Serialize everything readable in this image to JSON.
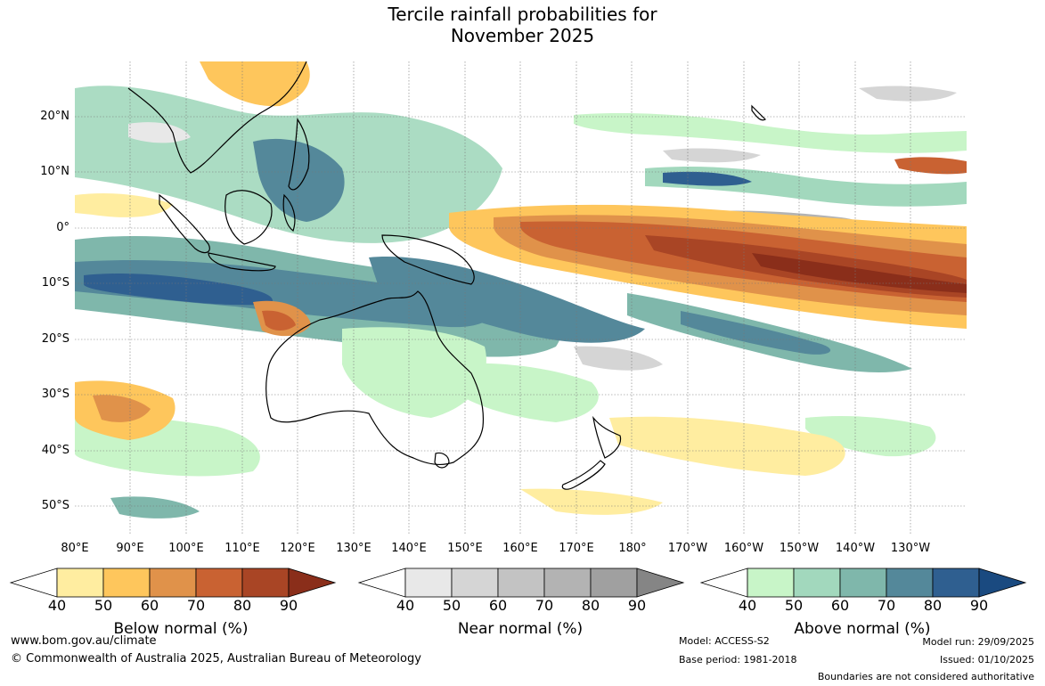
{
  "title": {
    "line1": "Tercile rainfall probabilities for",
    "line2": "November 2025"
  },
  "map": {
    "lat_labels": [
      "20°N",
      "10°N",
      "0°",
      "10°S",
      "20°S",
      "30°S",
      "40°S",
      "50°S"
    ],
    "lon_labels": [
      "80°E",
      "90°E",
      "100°E",
      "110°E",
      "120°E",
      "130°E",
      "140°E",
      "150°E",
      "160°E",
      "170°E",
      "180°",
      "170°W",
      "160°W",
      "150°W",
      "140°W",
      "130°W"
    ]
  },
  "legends": [
    {
      "title": "Below normal (%)",
      "ticks": [
        "40",
        "50",
        "60",
        "70",
        "80",
        "90"
      ],
      "colors": [
        "#ffeda0",
        "#fec65c",
        "#e0924a",
        "#c96232",
        "#a94525",
        "#8a2e1a"
      ]
    },
    {
      "title": "Near normal (%)",
      "ticks": [
        "40",
        "50",
        "60",
        "70",
        "80",
        "90"
      ],
      "colors": [
        "#e8e8e8",
        "#d5d5d5",
        "#c3c3c3",
        "#b3b3b3",
        "#a0a0a0",
        "#858585"
      ]
    },
    {
      "title": "Above normal (%)",
      "ticks": [
        "40",
        "50",
        "60",
        "70",
        "80",
        "90"
      ],
      "colors": [
        "#c8f5c8",
        "#a2d8bd",
        "#7fb7ab",
        "#54889a",
        "#2f5f90",
        "#1a4a80"
      ]
    }
  ],
  "footer": {
    "url": "www.bom.gov.au/climate",
    "copyright": "© Commonwealth of Australia 2025, Australian Bureau of Meteorology",
    "model": "Model: ACCESS-S2",
    "base_period": "Base period: 1981-2018",
    "model_run": "Model run: 29/09/2025",
    "issued": "Issued: 01/10/2025",
    "boundaries": "Boundaries are not considered authoritative"
  }
}
